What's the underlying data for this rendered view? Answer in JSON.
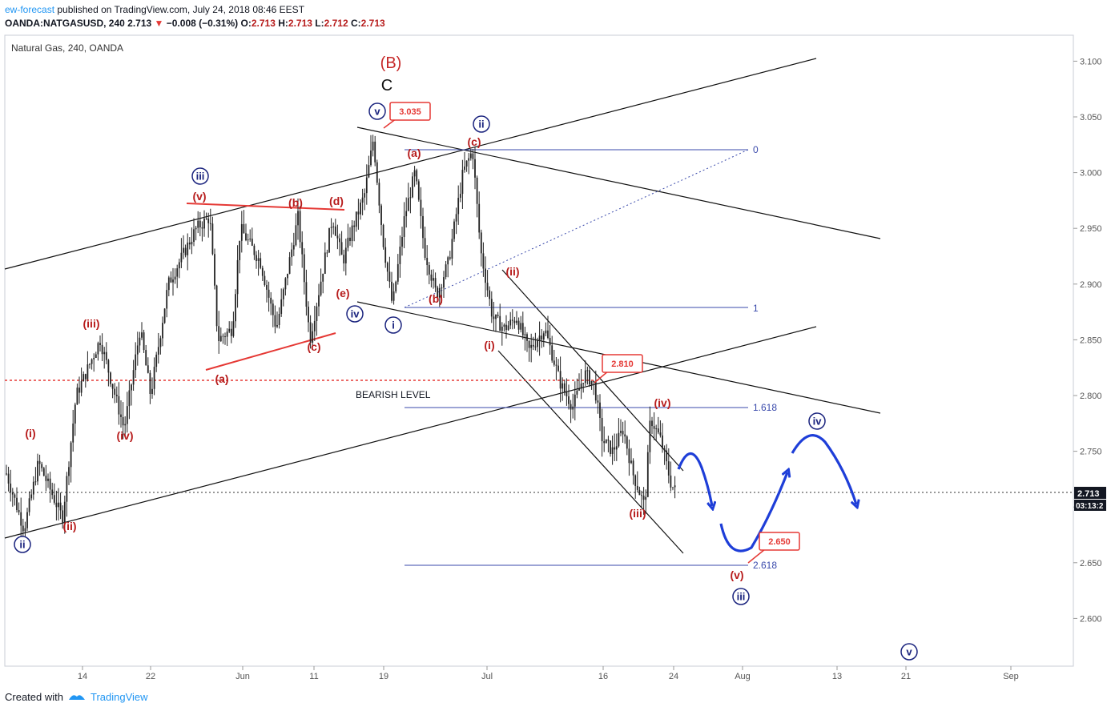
{
  "header": {
    "author": "ew-forecast",
    "published_text": "published on TradingView.com, July 24, 2018 08:46 EEST",
    "symbol": "OANDA:NATGASUSD, 240",
    "last": "2.713",
    "change": "−0.008 (−0.31%)",
    "o_label": "O:",
    "o_value": "2.713",
    "h_label": "H:",
    "h_value": "2.713",
    "l_label": "L:",
    "l_value": "2.712",
    "c_label": "C:",
    "c_value": "2.713"
  },
  "legend": "Natural Gas, 240, OANDA",
  "footer": {
    "created_with": "Created with",
    "brand": "TradingView"
  },
  "colors": {
    "red": "#c62828",
    "blue": "#1a237e",
    "arrow_blue": "#1e3ed8",
    "fib_blue": "#3949ab",
    "bearish": "#e53935"
  },
  "chart_data": {
    "type": "candlestick",
    "title": "Natural Gas, 240, OANDA",
    "ylim": [
      2.55,
      3.12
    ],
    "y_ticks": [
      "3.100",
      "3.050",
      "3.000",
      "2.950",
      "2.900",
      "2.850",
      "2.800",
      "2.750",
      "2.700",
      "2.650",
      "2.600"
    ],
    "x_ticks": [
      "14",
      "22",
      "Jun",
      "11",
      "19",
      "Jul",
      "16",
      "24",
      "Aug",
      "13",
      "21",
      "Sep"
    ],
    "last_price": "2.713",
    "countdown": "03:13:2",
    "bearish_level_label": "BEARISH LEVEL",
    "bearish_level": 2.812,
    "price_callouts": [
      {
        "text": "3.035",
        "value": 3.035
      },
      {
        "text": "2.810",
        "value": 2.81
      },
      {
        "text": "2.650",
        "value": 2.65
      }
    ],
    "fib_levels": [
      {
        "label": "0",
        "value": 3.019
      },
      {
        "label": "1",
        "value": 2.878
      },
      {
        "label": "1.618",
        "value": 2.789
      },
      {
        "label": "2.618",
        "value": 2.647
      }
    ],
    "wave_labels_red": [
      "(B)",
      "(i)",
      "(ii)",
      "(iii)",
      "(iv)",
      "(v)",
      "(a)",
      "(b)",
      "(c)",
      "(d)",
      "(e)",
      "(a)",
      "(b)",
      "(c)",
      "(i)",
      "(ii)",
      "(iii)",
      "(iv)",
      "(v)",
      "(iii)",
      "(iv)"
    ],
    "wave_label_c": "C",
    "wave_labels_blue": [
      "ii",
      "iii",
      "iv",
      "v",
      "i",
      "ii",
      "iii",
      "iv",
      "v"
    ]
  }
}
